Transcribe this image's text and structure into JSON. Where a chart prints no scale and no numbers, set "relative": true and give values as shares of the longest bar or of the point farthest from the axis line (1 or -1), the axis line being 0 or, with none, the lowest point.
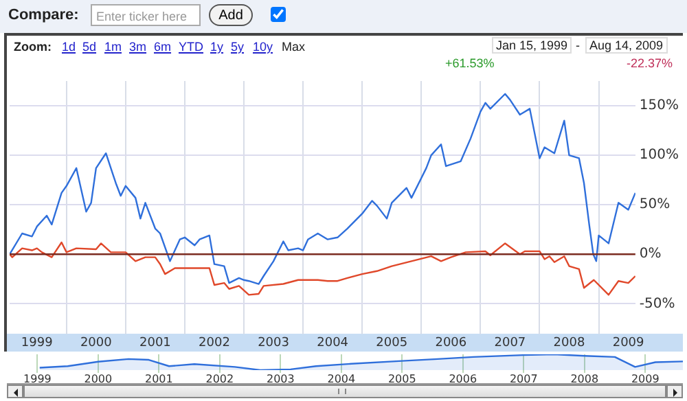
{
  "chart_data": [
    {
      "type": "line",
      "annotations": [
        "Compare:",
        "Enter ticker here",
        "Add",
        "Zoom:",
        "1d",
        "5d",
        "1m",
        "3m",
        "6m",
        "YTD",
        "1y",
        "5y",
        "10y",
        "Max",
        "Jan 15, 1999",
        "-",
        "Aug 14, 2009",
        "+61.53%",
        "-22.37%"
      ],
      "xlim": [
        "1999-01-15",
        "2009-08-14"
      ],
      "xticks": [
        {
          "value": "1999-07",
          "label": "1999"
        },
        {
          "value": "2000",
          "label": null
        },
        {
          "value": "2000-07",
          "label": "2000"
        },
        {
          "value": "2001",
          "label": null
        },
        {
          "value": "2001-07",
          "label": "2001"
        },
        {
          "value": "2002",
          "label": null
        },
        {
          "value": "2002-07",
          "label": "2002"
        },
        {
          "value": "2003",
          "label": null
        },
        {
          "value": "2003-07",
          "label": "2003"
        },
        {
          "value": "2004",
          "label": null
        },
        {
          "value": "2004-07",
          "label": "2004"
        },
        {
          "value": "2005",
          "label": null
        },
        {
          "value": "2005-07",
          "label": "2005"
        },
        {
          "value": "2006",
          "label": null
        },
        {
          "value": "2006-07",
          "label": "2006"
        },
        {
          "value": "2007",
          "label": null
        },
        {
          "value": "2007-07",
          "label": "2007"
        },
        {
          "value": "2008",
          "label": null
        },
        {
          "value": "2008-07",
          "label": "2008"
        },
        {
          "value": "2009",
          "label": null
        },
        {
          "value": "2009-07",
          "label": "2009"
        }
      ],
      "ylim": [
        -75,
        175
      ],
      "yticks": [
        {
          "value": -50,
          "label": "-50%"
        },
        {
          "value": 0,
          "label": "0%"
        },
        {
          "value": 50,
          "label": "50%"
        },
        {
          "value": 100,
          "label": "100%"
        },
        {
          "value": 150,
          "label": "150%"
        }
      ],
      "grid": true,
      "legend": false,
      "marker": "none",
      "line_style": "solid",
      "ref_lines": [
        {
          "axis": "y",
          "value": 0,
          "label": null,
          "color": "#7b2b20"
        }
      ],
      "series": [
        {
          "color": "#2f6fdb",
          "x": [
            "1999-01-15",
            "1999-04",
            "1999-06",
            "1999-07",
            "1999-09",
            "1999-10",
            "1999-12",
            "2000-01",
            "2000-03",
            "2000-05",
            "2000-06",
            "2000-07",
            "2000-09",
            "2000-11",
            "2000-12",
            "2001-01",
            "2001-03",
            "2001-04",
            "2001-05",
            "2001-07",
            "2001-08",
            "2001-10",
            "2001-11",
            "2001-12",
            "2002-01",
            "2002-03",
            "2002-04",
            "2002-06",
            "2002-07",
            "2002-09",
            "2002-10",
            "2002-12",
            "2003-01",
            "2003-02",
            "2003-04",
            "2003-05",
            "2003-07",
            "2003-09",
            "2003-10",
            "2003-12",
            "2004-01",
            "2004-02",
            "2004-04",
            "2004-06",
            "2004-08",
            "2004-10",
            "2005-01",
            "2005-03",
            "2005-04",
            "2005-06",
            "2005-07",
            "2005-10",
            "2005-11",
            "2006-02",
            "2006-03",
            "2006-05",
            "2006-06",
            "2006-09",
            "2006-11",
            "2007-01",
            "2007-02",
            "2007-03",
            "2007-06",
            "2007-07",
            "2007-09",
            "2007-11",
            "2008-01",
            "2008-02",
            "2008-04",
            "2008-06",
            "2008-07",
            "2008-09",
            "2008-10",
            "2008-11-03",
            "2008-11-28",
            "2008-12-16",
            "2009-01",
            "2009-03",
            "2009-05",
            "2009-07",
            "2009-08-14"
          ],
          "values": [
            0,
            21,
            18,
            28,
            39,
            30,
            62,
            69,
            87,
            43,
            52,
            87,
            102,
            72,
            59,
            69,
            57,
            36,
            52,
            26,
            21,
            -7,
            4,
            15,
            17,
            9,
            15,
            19,
            -10,
            -12,
            -29,
            -24,
            -26,
            -27,
            -30,
            -22,
            -7,
            13,
            4,
            6,
            4,
            15,
            21,
            15,
            17,
            26,
            41,
            54,
            49,
            36,
            52,
            67,
            57,
            87,
            100,
            111,
            89,
            94,
            117,
            144,
            153,
            147,
            162,
            156,
            141,
            147,
            97,
            108,
            102,
            135,
            100,
            97,
            72,
            30,
            0,
            -7,
            19,
            11,
            52,
            45,
            62
          ]
        },
        {
          "color": "#e0482a",
          "x": [
            "1999-01-15",
            "1999-02",
            "1999-04",
            "1999-06",
            "1999-07",
            "1999-08",
            "1999-10",
            "1999-12",
            "2000-01",
            "2000-03",
            "2000-07",
            "2000-08",
            "2000-10",
            "2001-01",
            "2001-03",
            "2001-05",
            "2001-07",
            "2001-08",
            "2001-09",
            "2001-11",
            "2002-01",
            "2002-06",
            "2002-07",
            "2002-09",
            "2002-10",
            "2002-12",
            "2003-02",
            "2003-04",
            "2003-05",
            "2003-09",
            "2003-12",
            "2004-04",
            "2004-06",
            "2004-08",
            "2004-10",
            "2005-01",
            "2005-04",
            "2005-07",
            "2005-11",
            "2006-03",
            "2006-05",
            "2006-07",
            "2006-10",
            "2007-02",
            "2007-03",
            "2007-06",
            "2007-09",
            "2007-10",
            "2008-01",
            "2008-02",
            "2008-03",
            "2008-04",
            "2008-06",
            "2008-07",
            "2008-09",
            "2008-10",
            "2008-11",
            "2008-12",
            "2009-03",
            "2009-05",
            "2009-07",
            "2009-08-14"
          ],
          "values": [
            0,
            -3,
            6,
            4,
            6,
            2,
            -3,
            12,
            2,
            6,
            5,
            11,
            2,
            2,
            -7,
            -3,
            -3,
            -10,
            -20,
            -14,
            -14,
            -14,
            -31,
            -29,
            -35,
            -32,
            -41,
            -40,
            -32,
            -30,
            -26,
            -26,
            -27,
            -27,
            -24,
            -20,
            -17,
            -12,
            -7,
            -2,
            -7,
            -3,
            2,
            3,
            -1,
            11,
            0,
            3,
            3,
            -5,
            -2,
            -8,
            -2,
            -12,
            -15,
            -34,
            -30,
            -26,
            -41,
            -27,
            -29,
            -22
          ]
        }
      ]
    },
    {
      "type": "area",
      "relative": true,
      "grid": "x",
      "legend": false,
      "marker": "none",
      "xlim": [
        "1999",
        "2009-08-14"
      ],
      "xticks": [
        {
          "value": "1999",
          "label": "1999"
        },
        {
          "value": "2000",
          "label": "2000"
        },
        {
          "value": "2001",
          "label": "2001"
        },
        {
          "value": "2002",
          "label": "2002"
        },
        {
          "value": "2003",
          "label": "2003"
        },
        {
          "value": "2004",
          "label": "2004"
        },
        {
          "value": "2005",
          "label": "2005"
        },
        {
          "value": "2006",
          "label": "2006"
        },
        {
          "value": "2007",
          "label": "2007"
        },
        {
          "value": "2008",
          "label": "2008"
        },
        {
          "value": "2009",
          "label": "2009"
        }
      ],
      "series": [
        {
          "color": "#2f6fdb",
          "x": [
            "1999-01-15",
            "1999-07",
            "2000-01",
            "2000-07",
            "2000-11",
            "2001-03",
            "2001-08",
            "2002-04",
            "2002-09",
            "2003-03",
            "2003-08",
            "2004-03",
            "2005-01",
            "2005-08",
            "2006-03",
            "2007-01",
            "2007-07",
            "2008-01",
            "2008-07",
            "2008-11",
            "2009-03",
            "2009-08-14"
          ],
          "values": [
            0.15,
            0.25,
            0.53,
            0.7,
            0.65,
            0.25,
            0.38,
            0.2,
            0,
            0.05,
            0.25,
            0.4,
            0.58,
            0.7,
            0.83,
            0.95,
            1,
            0.9,
            0.83,
            0.2,
            0.5,
            0.55
          ]
        }
      ]
    }
  ]
}
